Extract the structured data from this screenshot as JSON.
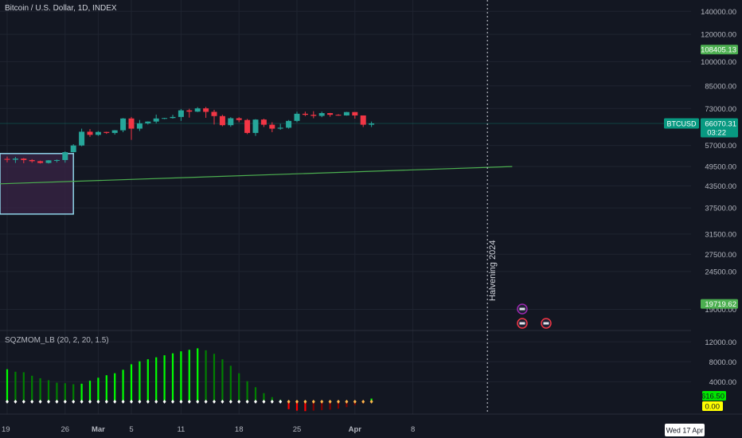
{
  "chart_title": "Bitcoin / U.S. Dollar, 1D, INDEX",
  "indicator_title": "SQZMOM_LB (20, 2, 20, 1.5)",
  "colors": {
    "background": "#131722",
    "grid": "#1f2430",
    "up": "#26a69a",
    "down": "#f23645",
    "trendline": "#4caf50",
    "box_border": "#8fd3e8",
    "box_fill": "#3a2446",
    "lime": "#00ff00",
    "green": "#008000",
    "red": "#ff0000",
    "maroon": "#800000"
  },
  "price_axis": {
    "ticks": [
      "140000.00",
      "120000.00",
      "100000.00",
      "85000.00",
      "73000.00",
      "57000.00",
      "49500.00",
      "43500.00",
      "37500.00",
      "31500.00",
      "27500.00",
      "24500.00",
      "19000.00"
    ],
    "labels": [
      {
        "text": "108405.13",
        "color": "#4caf50",
        "text_color": "#ffffff"
      },
      {
        "text": "BTCUSD",
        "color": "#089981",
        "text_color": "#ffffff"
      },
      {
        "text": "66070.31",
        "color": "#089981",
        "text_color": "#ffffff"
      },
      {
        "text": "03:22",
        "color": "#089981",
        "text_color": "#ffffff"
      },
      {
        "text": "19719.62",
        "color": "#4caf50",
        "text_color": "#ffffff"
      }
    ]
  },
  "indicator_axis": {
    "ticks": [
      "12000.00",
      "8000.00",
      "4000.00"
    ],
    "labels": [
      {
        "text": "616.50",
        "color": "#00e600",
        "text_color": "#131722"
      },
      {
        "text": "0.00",
        "color": "#ffff00",
        "text_color": "#131722"
      }
    ]
  },
  "time_axis": {
    "ticks": [
      "19",
      "26",
      "Mar",
      "5",
      "11",
      "18",
      "25",
      "Apr",
      "8"
    ],
    "marker_label": "Wed 17 Apr"
  },
  "halving_label": "Halvening 2024",
  "chart_data": {
    "type": "candlestick",
    "title": "Bitcoin / U.S. Dollar, 1D, INDEX",
    "symbol": "BTCUSD",
    "last_price": 66070.31,
    "price_scale": "log",
    "ylim": [
      15000,
      160000
    ],
    "candles": [
      {
        "date": "2024-02-19",
        "open": 52100,
        "high": 52900,
        "low": 50900,
        "close": 51800
      },
      {
        "date": "2024-02-20",
        "open": 51800,
        "high": 52800,
        "low": 50700,
        "close": 52200
      },
      {
        "date": "2024-02-21",
        "open": 52200,
        "high": 52400,
        "low": 50600,
        "close": 51700
      },
      {
        "date": "2024-02-22",
        "open": 51700,
        "high": 52000,
        "low": 50800,
        "close": 51300
      },
      {
        "date": "2024-02-23",
        "open": 51300,
        "high": 51500,
        "low": 50500,
        "close": 50700
      },
      {
        "date": "2024-02-24",
        "open": 50700,
        "high": 51700,
        "low": 50500,
        "close": 51600
      },
      {
        "date": "2024-02-25",
        "open": 51600,
        "high": 51900,
        "low": 50900,
        "close": 51700
      },
      {
        "date": "2024-02-26",
        "open": 51700,
        "high": 54800,
        "low": 50800,
        "close": 54500
      },
      {
        "date": "2024-02-27",
        "open": 54500,
        "high": 57500,
        "low": 54400,
        "close": 57000
      },
      {
        "date": "2024-02-28",
        "open": 57000,
        "high": 63800,
        "low": 56700,
        "close": 62500
      },
      {
        "date": "2024-02-29",
        "open": 62500,
        "high": 63600,
        "low": 60400,
        "close": 61200
      },
      {
        "date": "2024-03-01",
        "open": 61200,
        "high": 62800,
        "low": 60800,
        "close": 62400
      },
      {
        "date": "2024-03-02",
        "open": 62400,
        "high": 62500,
        "low": 61600,
        "close": 62000
      },
      {
        "date": "2024-03-03",
        "open": 62000,
        "high": 63200,
        "low": 61300,
        "close": 63100
      },
      {
        "date": "2024-03-04",
        "open": 63100,
        "high": 68500,
        "low": 62300,
        "close": 68300
      },
      {
        "date": "2024-03-05",
        "open": 68300,
        "high": 69000,
        "low": 59200,
        "close": 63800
      },
      {
        "date": "2024-03-06",
        "open": 63800,
        "high": 67600,
        "low": 62800,
        "close": 66100
      },
      {
        "date": "2024-03-07",
        "open": 66100,
        "high": 67000,
        "low": 65600,
        "close": 66900
      },
      {
        "date": "2024-03-08",
        "open": 66900,
        "high": 70100,
        "low": 66100,
        "close": 68300
      },
      {
        "date": "2024-03-09",
        "open": 68300,
        "high": 68600,
        "low": 68000,
        "close": 68500
      },
      {
        "date": "2024-03-10",
        "open": 68500,
        "high": 70000,
        "low": 68200,
        "close": 69000
      },
      {
        "date": "2024-03-11",
        "open": 69000,
        "high": 72800,
        "low": 67200,
        "close": 72100
      },
      {
        "date": "2024-03-12",
        "open": 72100,
        "high": 72900,
        "low": 68700,
        "close": 71500
      },
      {
        "date": "2024-03-13",
        "open": 71500,
        "high": 73700,
        "low": 71300,
        "close": 73100
      },
      {
        "date": "2024-03-14",
        "open": 73100,
        "high": 73800,
        "low": 68600,
        "close": 71400
      },
      {
        "date": "2024-03-15",
        "open": 71400,
        "high": 72400,
        "low": 65600,
        "close": 69400
      },
      {
        "date": "2024-03-16",
        "open": 69400,
        "high": 70000,
        "low": 64800,
        "close": 65300
      },
      {
        "date": "2024-03-17",
        "open": 65300,
        "high": 68900,
        "low": 64600,
        "close": 68400
      },
      {
        "date": "2024-03-18",
        "open": 68400,
        "high": 68900,
        "low": 66600,
        "close": 67600
      },
      {
        "date": "2024-03-19",
        "open": 67600,
        "high": 68100,
        "low": 61500,
        "close": 62000
      },
      {
        "date": "2024-03-20",
        "open": 62000,
        "high": 68000,
        "low": 60800,
        "close": 67800
      },
      {
        "date": "2024-03-21",
        "open": 67800,
        "high": 68200,
        "low": 64500,
        "close": 65500
      },
      {
        "date": "2024-03-22",
        "open": 65500,
        "high": 66600,
        "low": 62300,
        "close": 63800
      },
      {
        "date": "2024-03-23",
        "open": 63800,
        "high": 65900,
        "low": 63300,
        "close": 64200
      },
      {
        "date": "2024-03-24",
        "open": 64200,
        "high": 67600,
        "low": 63800,
        "close": 67200
      },
      {
        "date": "2024-03-25",
        "open": 67200,
        "high": 71500,
        "low": 66600,
        "close": 70500
      },
      {
        "date": "2024-03-26",
        "open": 70500,
        "high": 71500,
        "low": 69400,
        "close": 70000
      },
      {
        "date": "2024-03-27",
        "open": 70000,
        "high": 71700,
        "low": 68400,
        "close": 69500
      },
      {
        "date": "2024-03-28",
        "open": 69500,
        "high": 71500,
        "low": 68900,
        "close": 70800
      },
      {
        "date": "2024-03-29",
        "open": 70800,
        "high": 70900,
        "low": 69100,
        "close": 70000
      },
      {
        "date": "2024-03-30",
        "open": 70000,
        "high": 70300,
        "low": 69600,
        "close": 69700
      },
      {
        "date": "2024-03-31",
        "open": 69700,
        "high": 71400,
        "low": 69600,
        "close": 71300
      },
      {
        "date": "2024-04-01",
        "open": 71300,
        "high": 71300,
        "low": 68200,
        "close": 69700
      },
      {
        "date": "2024-04-02",
        "open": 69700,
        "high": 69700,
        "low": 64500,
        "close": 65500
      },
      {
        "date": "2024-04-03",
        "open": 65500,
        "high": 66900,
        "low": 64500,
        "close": 66070
      }
    ],
    "trendline": {
      "start": {
        "date": "2024-02-11",
        "price": 43500
      },
      "end": {
        "date": "2024-04-20",
        "price": 49500
      }
    },
    "box": {
      "start": "2024-02-11",
      "end": "2024-02-27",
      "top": 54000,
      "bottom": 36000
    },
    "halving_date": "2024-04-17",
    "indicator": {
      "name": "SQZMOM_LB (20, 2, 20, 1.5)",
      "ylim": [
        -2500,
        13000
      ],
      "values": [
        6500,
        6000,
        5900,
        5200,
        4700,
        4300,
        3800,
        3700,
        3500,
        3600,
        4200,
        4800,
        5300,
        5700,
        6400,
        7500,
        8100,
        8500,
        8900,
        9300,
        9700,
        10100,
        10400,
        10700,
        10300,
        9600,
        8500,
        7200,
        5700,
        4100,
        2900,
        1700,
        900,
        400,
        -1500,
        -1800,
        -1900,
        -1800,
        -1700,
        -1600,
        -1400,
        -1100,
        -700,
        -350,
        616.5
      ],
      "zero_colors": [
        "#ffffff",
        "#ffffff",
        "#ffffff",
        "#ffffff",
        "#ffffff",
        "#ffffff",
        "#ffffff",
        "#ffffff",
        "#ffffff",
        "#ffffff",
        "#ffffff",
        "#ffffff",
        "#ffffff",
        "#ffffff",
        "#ffffff",
        "#ffffff",
        "#ffffff",
        "#ffffff",
        "#ffffff",
        "#ffffff",
        "#ffffff",
        "#ffffff",
        "#ffffff",
        "#ffffff",
        "#ffffff",
        "#ffffff",
        "#ffffff",
        "#ffffff",
        "#ffffff",
        "#ffffff",
        "#ffffff",
        "#ffffff",
        "#ffffff",
        "#ffffff",
        "#ffb74d",
        "#ffb74d",
        "#ffb74d",
        "#ffb74d",
        "#ffb74d",
        "#ffb74d",
        "#ffb74d",
        "#ffb74d",
        "#ffb74d",
        "#ffb74d",
        "#ffb74d"
      ]
    }
  }
}
